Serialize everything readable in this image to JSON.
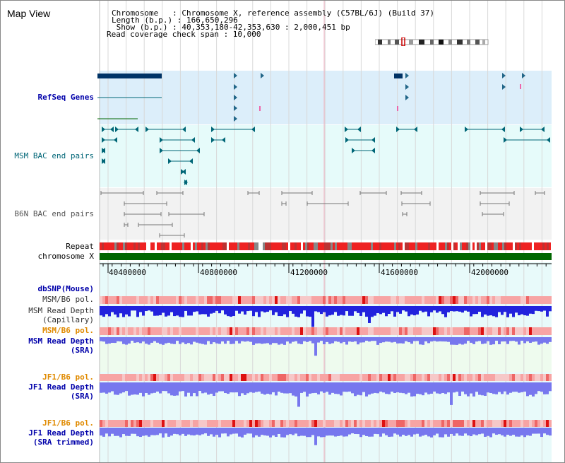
{
  "title": "Map View",
  "info": {
    "line1": "Chromosome   : Chromosome X, reference assembly (C57BL/6J) (Build 37)",
    "line2": "Length (b.p.) : 166,650,296",
    "line3": " Show (b.p.) : 40,353,180-42,353,630 : 2,000,451 bp",
    "line4": "Read coverage check span : 10,000"
  },
  "tracks": {
    "refseq": "RefSeq Genes",
    "msm_bac": "MSM BAC end pairs",
    "b6n_bac": "B6N BAC end pairs",
    "repeat": "Repeat",
    "chromosome": "chromosome X",
    "dbsnp": "dbSNP(Mouse)",
    "msm_b6_pol_1": "MSM/B6 pol.",
    "msm_depth_cap_1": "MSM Read Depth",
    "msm_depth_cap_2": "(Capillary)",
    "msm_b6_pol_2": "MSM/B6 pol.",
    "msm_depth_sra_1": "MSM Read Depth",
    "msm_depth_sra_2": "(SRA)",
    "jf1_b6_pol_1": "JF1/B6 pol.",
    "jf1_depth_1": "JF1 Read Depth",
    "jf1_depth_2": "(SRA)",
    "jf1_b6_pol_2": "JF1/B6 pol.",
    "jf1_trim_1": "JF1 Read Depth",
    "jf1_trim_2": "(SRA trimmed)"
  },
  "axis": {
    "ticks": [
      "40400000",
      "40800000",
      "41200000",
      "41600000",
      "42000000"
    ]
  },
  "colors": {
    "refseq_bg": "#dceefa",
    "msm_bac_bg": "#e6fbfa",
    "b6n_bac_bg": "#f2f2f2",
    "lower_bg": "#e8fafa",
    "refseq_feature": "#003366",
    "bac_feature": "#006677",
    "b6n_feature": "#777777",
    "chromosome_bar": "#006600",
    "depth_dark": "#2222dd",
    "depth_light": "#7777ee"
  }
}
